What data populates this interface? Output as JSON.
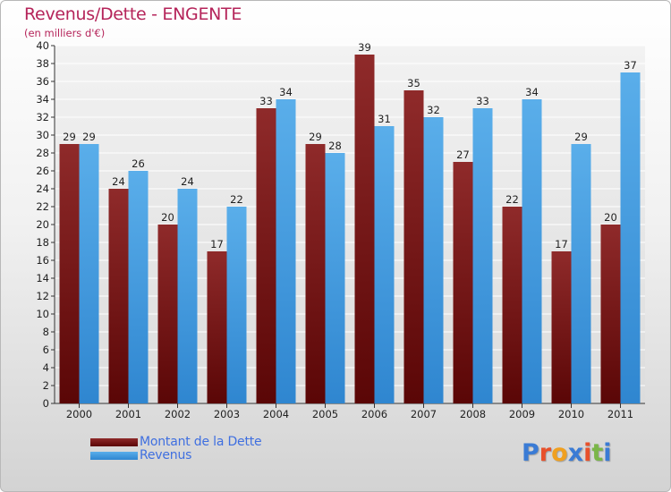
{
  "chart_data": {
    "type": "bar",
    "title": "Revenus/Dette - ENGENTE",
    "subtitle": "(en milliers d'€)",
    "categories": [
      "2000",
      "2001",
      "2002",
      "2003",
      "2004",
      "2005",
      "2006",
      "2007",
      "2008",
      "2009",
      "2010",
      "2011"
    ],
    "series": [
      {
        "name": "Montant de la Dette",
        "values": [
          29,
          24,
          20,
          17,
          33,
          29,
          39,
          35,
          27,
          22,
          17,
          20
        ],
        "color": "#7a1a1a"
      },
      {
        "name": "Revenus",
        "values": [
          29,
          26,
          24,
          22,
          34,
          28,
          31,
          32,
          33,
          34,
          29,
          37
        ],
        "color": "#4ba3e6"
      }
    ],
    "ylim": [
      0,
      40
    ],
    "yticks": [
      0,
      2,
      4,
      6,
      8,
      10,
      12,
      14,
      16,
      18,
      20,
      22,
      24,
      26,
      28,
      30,
      32,
      34,
      36,
      38,
      40
    ],
    "grid": true,
    "legend": "bottom-left",
    "xlabel": "",
    "ylabel": ""
  },
  "logo": {
    "letters": [
      "P",
      "r",
      "o",
      "x",
      "i",
      "t",
      "i"
    ],
    "colors": [
      "#3a7bd5",
      "#e8502a",
      "#f0a020",
      "#3a7bd5",
      "#e8502a",
      "#7ab648",
      "#3a7bd5"
    ]
  },
  "colors": {
    "title": "#b5245a",
    "legend_text": "#3f6fe0",
    "grid": "#ffffff",
    "plot_bg": "#e6e6e6"
  }
}
